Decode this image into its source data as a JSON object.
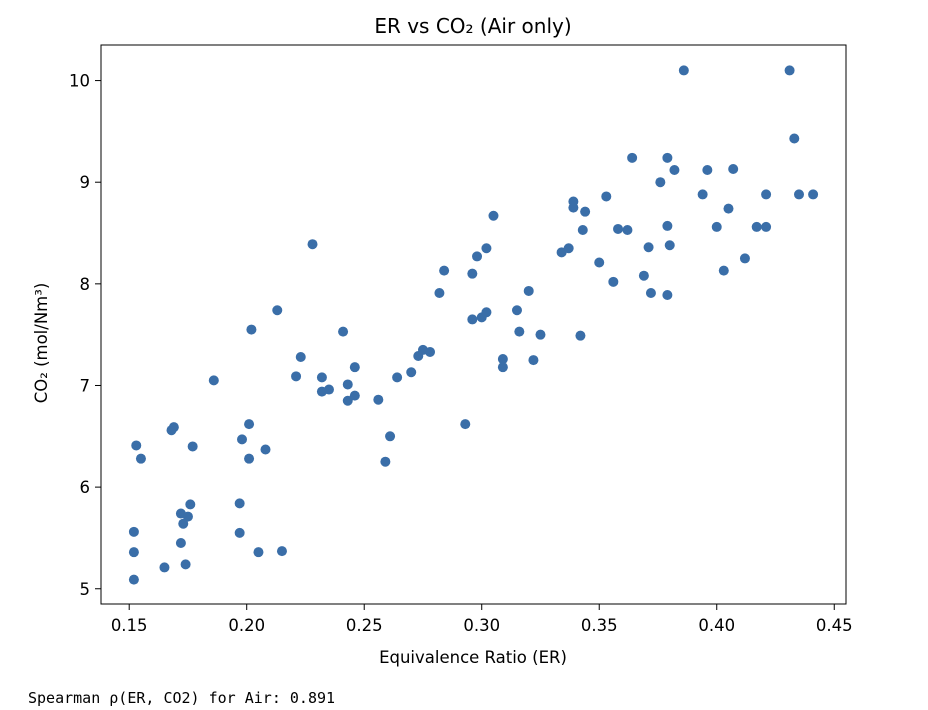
{
  "chart_data": {
    "type": "scatter",
    "title": "ER vs CO₂ (Air only)",
    "xlabel": "Equivalence Ratio (ER)",
    "ylabel": "CO₂ (mol/Nm³)",
    "xlim": [
      0.138,
      0.455
    ],
    "ylim": [
      4.85,
      10.35
    ],
    "xticks": [
      0.15,
      0.2,
      0.25,
      0.3,
      0.35,
      0.4,
      0.45
    ],
    "xtick_labels": [
      "0.15",
      "0.20",
      "0.25",
      "0.30",
      "0.35",
      "0.40",
      "0.45"
    ],
    "yticks": [
      5,
      6,
      7,
      8,
      9,
      10
    ],
    "ytick_labels": [
      "5",
      "6",
      "7",
      "8",
      "9",
      "10"
    ],
    "grid": false,
    "marker_color": "#3a6ea8",
    "series": [
      {
        "x": [
          0.152,
          0.152,
          0.152,
          0.153,
          0.155,
          0.165,
          0.168,
          0.169,
          0.172,
          0.172,
          0.173,
          0.174,
          0.175,
          0.176,
          0.177,
          0.186,
          0.197,
          0.197,
          0.198,
          0.201,
          0.201,
          0.202,
          0.205,
          0.208,
          0.213,
          0.215,
          0.221,
          0.223,
          0.228,
          0.232,
          0.232,
          0.235,
          0.241,
          0.243,
          0.243,
          0.246,
          0.246,
          0.256,
          0.259,
          0.261,
          0.264,
          0.27,
          0.273,
          0.275,
          0.278,
          0.282,
          0.284,
          0.293,
          0.296,
          0.296,
          0.298,
          0.3,
          0.302,
          0.302,
          0.305,
          0.309,
          0.309,
          0.315,
          0.316,
          0.32,
          0.322,
          0.325,
          0.334,
          0.337,
          0.339,
          0.339,
          0.342,
          0.343,
          0.344,
          0.35,
          0.353,
          0.356,
          0.358,
          0.362,
          0.364,
          0.369,
          0.371,
          0.372,
          0.376,
          0.379,
          0.379,
          0.379,
          0.38,
          0.382,
          0.386,
          0.394,
          0.396,
          0.4,
          0.403,
          0.405,
          0.407,
          0.412,
          0.417,
          0.421,
          0.421,
          0.431,
          0.433,
          0.435,
          0.441
        ],
        "y": [
          5.56,
          5.36,
          5.09,
          6.41,
          6.28,
          5.21,
          6.56,
          6.59,
          5.74,
          5.45,
          5.64,
          5.24,
          5.71,
          5.83,
          6.4,
          7.05,
          5.84,
          5.55,
          6.47,
          6.62,
          6.28,
          7.55,
          5.36,
          6.37,
          7.74,
          5.37,
          7.09,
          7.28,
          8.39,
          7.08,
          6.94,
          6.96,
          7.53,
          7.01,
          6.85,
          7.18,
          6.9,
          6.86,
          6.25,
          6.5,
          7.08,
          7.13,
          7.29,
          7.35,
          7.33,
          7.91,
          8.13,
          6.62,
          8.1,
          7.65,
          8.27,
          7.67,
          8.35,
          7.72,
          8.67,
          7.26,
          7.18,
          7.74,
          7.53,
          7.93,
          7.25,
          7.5,
          8.31,
          8.35,
          8.81,
          8.75,
          7.49,
          8.53,
          8.71,
          8.21,
          8.86,
          8.02,
          8.54,
          8.53,
          9.24,
          8.08,
          8.36,
          7.91,
          9.0,
          9.24,
          8.57,
          7.89,
          8.38,
          9.12,
          10.1,
          8.88,
          9.12,
          8.56,
          8.13,
          8.74,
          9.13,
          8.25,
          8.56,
          8.88,
          8.56,
          10.1,
          9.43,
          8.88,
          8.88
        ]
      }
    ]
  },
  "output": {
    "text": "Spearman ρ(ER, CO2) for Air: 0.891"
  }
}
